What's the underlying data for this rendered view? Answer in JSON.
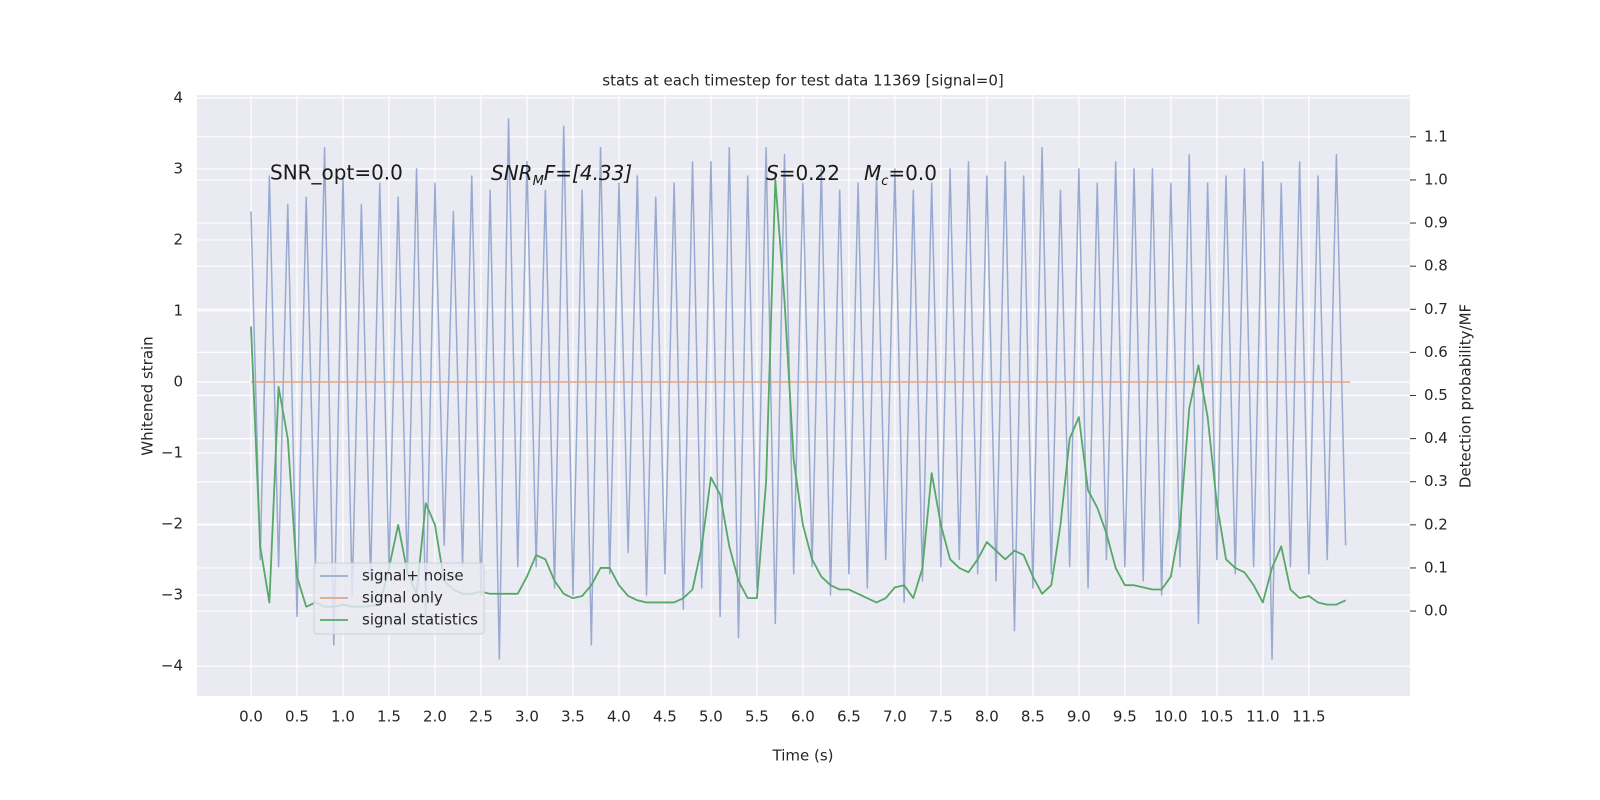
{
  "chart_data": {
    "type": "line",
    "title": "stats at each timestep for test data 11369 [signal=0]",
    "xlabel": "Time (s)",
    "ylabel": "Whitened strain",
    "y2label": "Detection probability/MF",
    "annotations": [
      "SNR_opt=0.0",
      [
        "SNR",
        "M",
        "F=[4.33]"
      ],
      [
        "S",
        "=0.22",
        "M",
        "c",
        "=0.0"
      ]
    ],
    "legend": "lower left",
    "grid": true,
    "xlim": [
      -0.587,
      12.6
    ],
    "ylim": [
      -4.42,
      4.04
    ],
    "y2lim": [
      -0.197,
      1.197
    ],
    "xticks": [
      {
        "value": 0,
        "label": "0.0"
      },
      0.5,
      {
        "value": 1,
        "label": "1.0"
      },
      1.5,
      {
        "value": 2,
        "label": "2.0"
      },
      2.5,
      {
        "value": 3,
        "label": "3.0"
      },
      3.5,
      {
        "value": 4,
        "label": "4.0"
      },
      4.5,
      {
        "value": 5,
        "label": "5.0"
      },
      5.5,
      {
        "value": 6,
        "label": "6.0"
      },
      6.5,
      {
        "value": 7,
        "label": "7.0"
      },
      7.5,
      {
        "value": 8,
        "label": "8.0"
      },
      8.5,
      {
        "value": 9,
        "label": "9.0"
      },
      9.5,
      {
        "value": 10,
        "label": "10.0"
      },
      10.5,
      {
        "value": 11,
        "label": "11.0"
      },
      11.5
    ],
    "yticks": [
      {
        "value": -4,
        "label": "−4"
      },
      {
        "value": -3,
        "label": "−3"
      },
      {
        "value": -2,
        "label": "−2"
      },
      {
        "value": -1,
        "label": "−1"
      },
      0,
      1,
      2,
      3,
      4
    ],
    "y2ticks": [
      {
        "value": 0,
        "label": "0.0"
      },
      0.1,
      0.2,
      0.3,
      0.4,
      0.5,
      0.6,
      0.7,
      0.8,
      0.9,
      {
        "value": 1,
        "label": "1.0"
      },
      1.1
    ],
    "series": [
      {
        "name": "signal+ noise",
        "color": "#99aad0",
        "axis": "y",
        "x": [
          0.0,
          0.1,
          0.2,
          0.3,
          0.4,
          0.5,
          0.6,
          0.7,
          0.8,
          0.9,
          1.0,
          1.1,
          1.2,
          1.3,
          1.4,
          1.5,
          1.6,
          1.7,
          1.8,
          1.9,
          2.0,
          2.1,
          2.2,
          2.3,
          2.4,
          2.5,
          2.6,
          2.7,
          2.8,
          2.9,
          3.0,
          3.1,
          3.2,
          3.3,
          3.4,
          3.5,
          3.6,
          3.7,
          3.8,
          3.9,
          4.0,
          4.1,
          4.2,
          4.3,
          4.4,
          4.5,
          4.6,
          4.7,
          4.8,
          4.9,
          5.0,
          5.1,
          5.2,
          5.3,
          5.4,
          5.5,
          5.6,
          5.7,
          5.8,
          5.9,
          6.0,
          6.1,
          6.2,
          6.3,
          6.4,
          6.5,
          6.6,
          6.7,
          6.8,
          6.9,
          7.0,
          7.1,
          7.2,
          7.3,
          7.4,
          7.5,
          7.6,
          7.7,
          7.8,
          7.9,
          8.0,
          8.1,
          8.2,
          8.3,
          8.4,
          8.5,
          8.6,
          8.7,
          8.8,
          8.9,
          9.0,
          9.1,
          9.2,
          9.3,
          9.4,
          9.5,
          9.6,
          9.7,
          9.8,
          9.9,
          10.0,
          10.1,
          10.2,
          10.3,
          10.4,
          10.5,
          10.6,
          10.7,
          10.8,
          10.9,
          11.0,
          11.1,
          11.2,
          11.3,
          11.4,
          11.5,
          11.6,
          11.7,
          11.8,
          11.9
        ],
        "values": [
          2.4,
          -2.5,
          2.9,
          -2.6,
          2.5,
          -3.3,
          2.6,
          -2.6,
          3.3,
          -3.7,
          2.9,
          -3.0,
          2.5,
          -2.8,
          2.8,
          -2.6,
          2.6,
          -2.7,
          3.0,
          -3.3,
          2.8,
          -2.3,
          2.4,
          -2.6,
          2.9,
          -3.0,
          2.7,
          -3.9,
          3.7,
          -2.6,
          3.1,
          -2.6,
          2.7,
          -2.9,
          3.6,
          -3.0,
          2.7,
          -3.7,
          3.3,
          -2.7,
          2.8,
          -2.4,
          2.9,
          -3.0,
          2.6,
          -2.7,
          2.8,
          -3.2,
          3.1,
          -2.9,
          3.1,
          -3.3,
          3.3,
          -3.6,
          2.9,
          -2.9,
          3.3,
          -3.4,
          3.2,
          -2.7,
          2.8,
          -2.6,
          3.0,
          -3.0,
          2.7,
          -2.7,
          2.8,
          -2.9,
          2.9,
          -2.5,
          3.0,
          -3.1,
          2.7,
          -2.8,
          2.8,
          -2.6,
          3.0,
          -2.5,
          3.1,
          -2.7,
          2.9,
          -2.8,
          3.1,
          -3.5,
          2.9,
          -2.9,
          3.3,
          -2.7,
          2.7,
          -2.6,
          3.0,
          -2.9,
          2.8,
          -2.5,
          3.1,
          -2.6,
          3.0,
          -2.8,
          3.0,
          -3.0,
          2.8,
          -2.6,
          3.2,
          -3.4,
          2.8,
          -2.5,
          2.9,
          -2.7,
          3.0,
          -2.6,
          3.1,
          -3.9,
          2.8,
          -2.6,
          3.1,
          -2.7,
          2.9,
          -2.5,
          3.2,
          -2.3
        ]
      },
      {
        "name": "signal only",
        "color": "#e0a585",
        "axis": "y",
        "x": [
          0.0,
          11.95
        ],
        "values": [
          0,
          0
        ]
      },
      {
        "name": "signal statistics",
        "color": "#55a868",
        "axis": "y2",
        "x": [
          0.0,
          0.1,
          0.2,
          0.3,
          0.4,
          0.5,
          0.6,
          0.7,
          0.8,
          0.9,
          1.0,
          1.1,
          1.2,
          1.3,
          1.4,
          1.5,
          1.6,
          1.7,
          1.8,
          1.9,
          2.0,
          2.1,
          2.2,
          2.3,
          2.4,
          2.5,
          2.6,
          2.7,
          2.8,
          2.9,
          3.0,
          3.1,
          3.2,
          3.3,
          3.4,
          3.5,
          3.6,
          3.7,
          3.8,
          3.9,
          4.0,
          4.1,
          4.2,
          4.3,
          4.4,
          4.5,
          4.6,
          4.7,
          4.8,
          4.9,
          5.0,
          5.1,
          5.2,
          5.3,
          5.4,
          5.5,
          5.6,
          5.7,
          5.8,
          5.9,
          6.0,
          6.1,
          6.2,
          6.3,
          6.4,
          6.5,
          6.6,
          6.7,
          6.8,
          6.9,
          7.0,
          7.1,
          7.2,
          7.3,
          7.4,
          7.5,
          7.6,
          7.7,
          7.8,
          7.9,
          8.0,
          8.1,
          8.2,
          8.3,
          8.4,
          8.5,
          8.6,
          8.7,
          8.8,
          8.9,
          9.0,
          9.1,
          9.2,
          9.3,
          9.4,
          9.5,
          9.6,
          9.7,
          9.8,
          9.9,
          10.0,
          10.1,
          10.2,
          10.3,
          10.4,
          10.5,
          10.6,
          10.7,
          10.8,
          10.9,
          11.0,
          11.1,
          11.2,
          11.3,
          11.4,
          11.5,
          11.6,
          11.7,
          11.8,
          11.9
        ],
        "values": [
          0.66,
          0.15,
          0.02,
          0.52,
          0.4,
          0.08,
          0.01,
          0.02,
          0.01,
          0.01,
          0.015,
          0.01,
          0.01,
          0.012,
          0.015,
          0.1,
          0.2,
          0.09,
          0.04,
          0.25,
          0.2,
          0.07,
          0.05,
          0.04,
          0.04,
          0.045,
          0.04,
          0.04,
          0.04,
          0.04,
          0.08,
          0.13,
          0.12,
          0.07,
          0.04,
          0.03,
          0.035,
          0.06,
          0.1,
          0.1,
          0.06,
          0.035,
          0.025,
          0.02,
          0.02,
          0.02,
          0.02,
          0.03,
          0.05,
          0.15,
          0.31,
          0.27,
          0.15,
          0.07,
          0.03,
          0.03,
          0.3,
          1.0,
          0.72,
          0.35,
          0.2,
          0.12,
          0.08,
          0.06,
          0.05,
          0.05,
          0.04,
          0.03,
          0.02,
          0.03,
          0.055,
          0.06,
          0.03,
          0.1,
          0.32,
          0.2,
          0.12,
          0.1,
          0.09,
          0.12,
          0.16,
          0.14,
          0.12,
          0.14,
          0.13,
          0.08,
          0.04,
          0.06,
          0.2,
          0.4,
          0.45,
          0.28,
          0.24,
          0.18,
          0.1,
          0.06,
          0.06,
          0.055,
          0.05,
          0.05,
          0.08,
          0.2,
          0.47,
          0.57,
          0.45,
          0.25,
          0.12,
          0.1,
          0.09,
          0.06,
          0.02,
          0.1,
          0.15,
          0.05,
          0.03,
          0.035,
          0.02,
          0.015,
          0.015,
          0.025
        ]
      }
    ]
  }
}
